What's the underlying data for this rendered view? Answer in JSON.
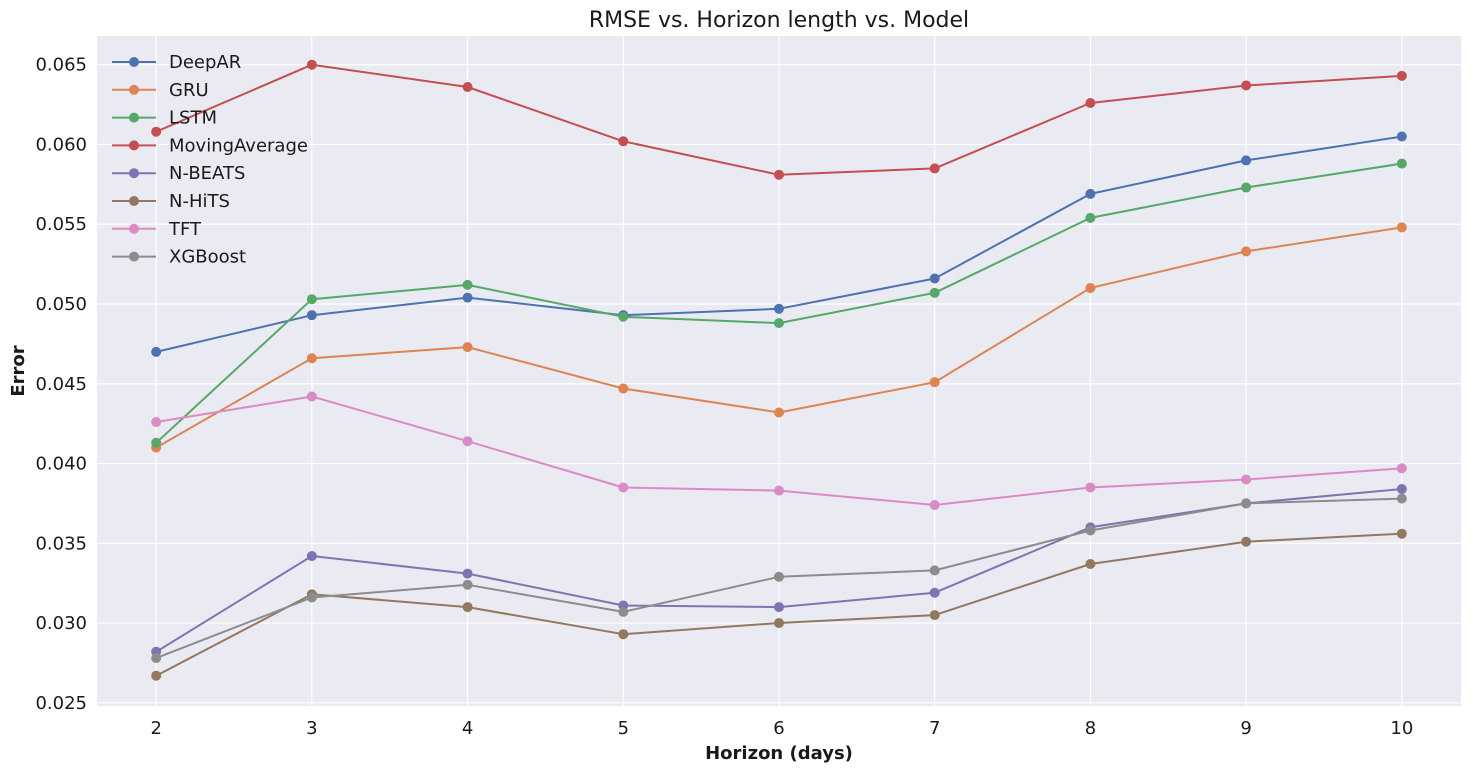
{
  "chart_data": {
    "type": "line",
    "title": "RMSE vs. Horizon length vs. Model",
    "xlabel": "Horizon (days)",
    "ylabel": "Error",
    "x": [
      2,
      3,
      4,
      5,
      6,
      7,
      8,
      9,
      10
    ],
    "xlim": [
      1.62,
      10.38
    ],
    "ylim": [
      0.0248,
      0.0668
    ],
    "yticks": [
      0.025,
      0.03,
      0.035,
      0.04,
      0.045,
      0.05,
      0.055,
      0.06,
      0.065
    ],
    "ytick_labels": [
      "0.025",
      "0.030",
      "0.035",
      "0.040",
      "0.045",
      "0.050",
      "0.055",
      "0.060",
      "0.065"
    ],
    "xtick_labels": [
      "2",
      "3",
      "4",
      "5",
      "6",
      "7",
      "8",
      "9",
      "10"
    ],
    "grid": true,
    "legend_position": "top-left",
    "series": [
      {
        "name": "DeepAR",
        "color": "#4c72b0",
        "values": [
          0.047,
          0.0493,
          0.0504,
          0.0493,
          0.0497,
          0.0516,
          0.0569,
          0.059,
          0.0605
        ]
      },
      {
        "name": "GRU",
        "color": "#dd8452",
        "values": [
          0.041,
          0.0466,
          0.0473,
          0.0447,
          0.0432,
          0.0451,
          0.051,
          0.0533,
          0.0548
        ]
      },
      {
        "name": "LSTM",
        "color": "#55a868",
        "values": [
          0.0413,
          0.0503,
          0.0512,
          0.0492,
          0.0488,
          0.0507,
          0.0554,
          0.0573,
          0.0588
        ]
      },
      {
        "name": "MovingAverage",
        "color": "#c44e52",
        "values": [
          0.0608,
          0.065,
          0.0636,
          0.0602,
          0.0581,
          0.0585,
          0.0626,
          0.0637,
          0.0643
        ]
      },
      {
        "name": "N-BEATS",
        "color": "#8172b3",
        "values": [
          0.0282,
          0.0342,
          0.0331,
          0.0311,
          0.031,
          0.0319,
          0.036,
          0.0375,
          0.0384
        ]
      },
      {
        "name": "N-HiTS",
        "color": "#937860",
        "values": [
          0.0267,
          0.0318,
          0.031,
          0.0293,
          0.03,
          0.0305,
          0.0337,
          0.0351,
          0.0356
        ]
      },
      {
        "name": "TFT",
        "color": "#da8bc3",
        "values": [
          0.0426,
          0.0442,
          0.0414,
          0.0385,
          0.0383,
          0.0374,
          0.0385,
          0.039,
          0.0397
        ]
      },
      {
        "name": "XGBoost",
        "color": "#8c8c8c",
        "values": [
          0.0278,
          0.0316,
          0.0324,
          0.0307,
          0.0329,
          0.0333,
          0.0358,
          0.0375,
          0.0378
        ]
      }
    ]
  }
}
